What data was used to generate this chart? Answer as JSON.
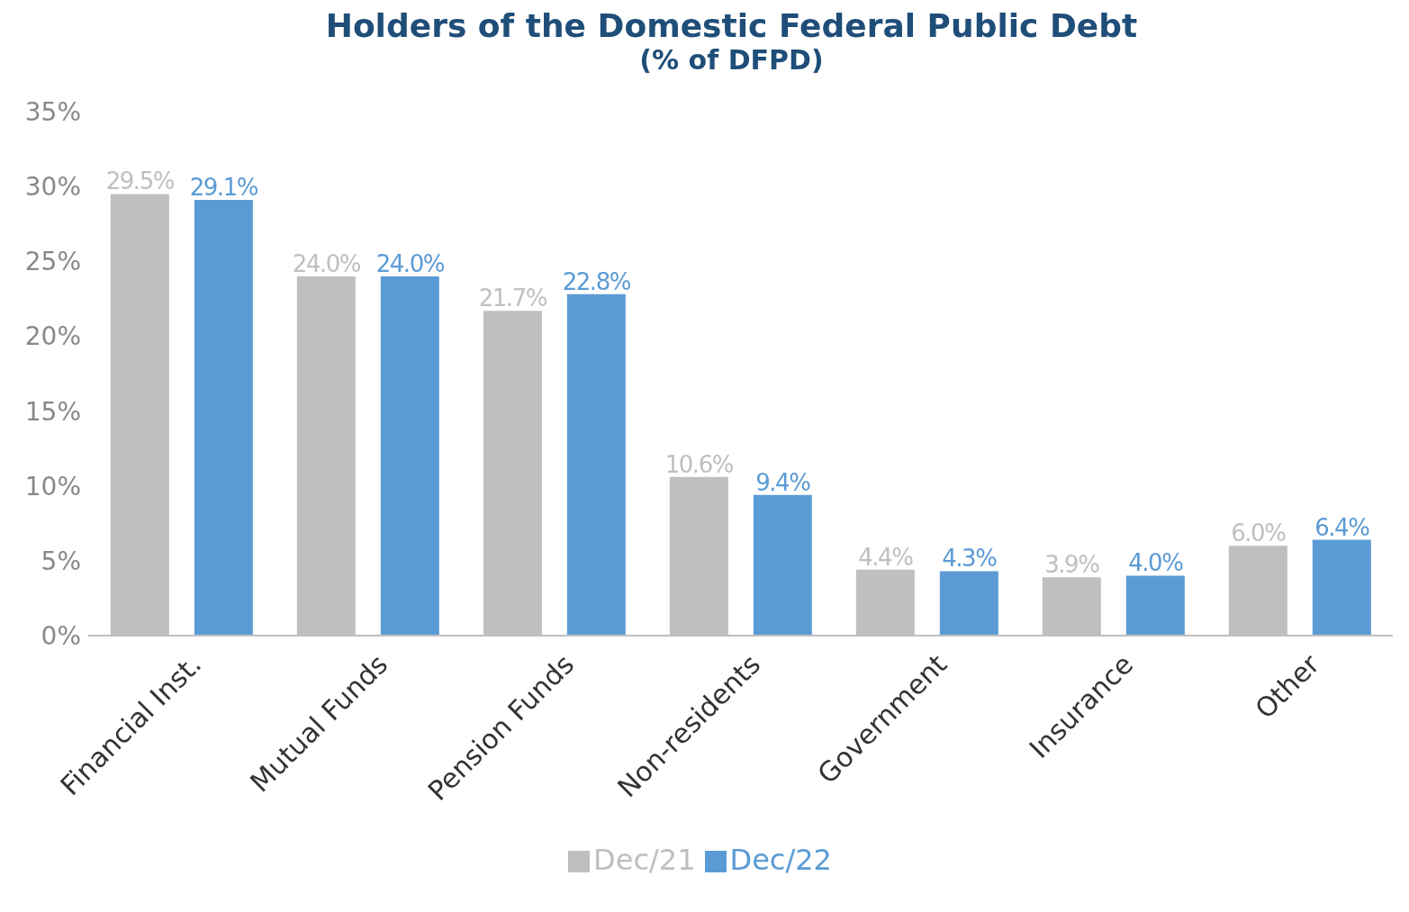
{
  "chart_data": {
    "type": "bar",
    "title": "Holders of the Domestic Federal Public Debt",
    "subtitle": "(% of DFPD)",
    "categories": [
      "Financial Inst.",
      "Mutual Funds",
      "Pension Funds",
      "Non-residents",
      "Government",
      "Insurance",
      "Other"
    ],
    "series": [
      {
        "name": "Dec/21",
        "color": "#bfbfbf",
        "values": [
          29.5,
          24.0,
          21.7,
          10.6,
          4.4,
          3.9,
          6.0
        ],
        "value_labels": [
          "29.5%",
          "24.0%",
          "21.7%",
          "10.6%",
          "4.4%",
          "3.9%",
          "6.0%"
        ]
      },
      {
        "name": "Dec/22",
        "color": "#5b9bd5",
        "values": [
          29.1,
          24.0,
          22.8,
          9.4,
          4.3,
          4.0,
          6.4
        ],
        "value_labels": [
          "29.1%",
          "24.0%",
          "22.8%",
          "9.4%",
          "4.3%",
          "4.0%",
          "6.4%"
        ]
      }
    ],
    "ylim": [
      0,
      35
    ],
    "yticks": [
      {
        "value": 0,
        "label": "0%"
      },
      {
        "value": 5,
        "label": "5%"
      },
      {
        "value": 10,
        "label": "10%"
      },
      {
        "value": 15,
        "label": "15%"
      },
      {
        "value": 20,
        "label": "20%"
      },
      {
        "value": 25,
        "label": "25%"
      },
      {
        "value": 30,
        "label": "30%"
      },
      {
        "value": 35,
        "label": "35%"
      }
    ],
    "grid": false,
    "legend": "bottom"
  }
}
